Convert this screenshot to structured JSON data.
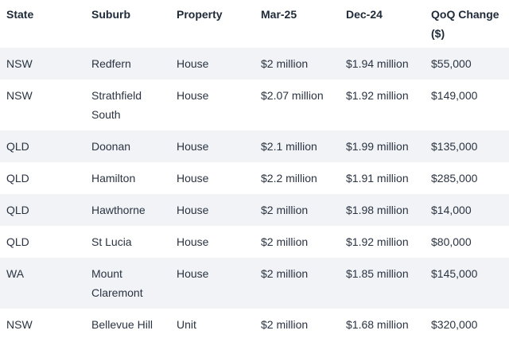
{
  "table": {
    "headers": [
      "State",
      "Suburb",
      "Property",
      "Mar-25",
      "Dec-24",
      "QoQ Change ($)"
    ],
    "rows": [
      [
        "NSW",
        "Redfern",
        "House",
        "$2 million",
        "$1.94 million",
        "$55,000"
      ],
      [
        "NSW",
        "Strathfield South",
        "House",
        "$2.07 million",
        "$1.92 million",
        "$149,000"
      ],
      [
        "QLD",
        "Doonan",
        "House",
        "$2.1 million",
        "$1.99 million",
        "$135,000"
      ],
      [
        "QLD",
        "Hamilton",
        "House",
        "$2.2 million",
        "$1.91 million",
        "$285,000"
      ],
      [
        "QLD",
        "Hawthorne",
        "House",
        "$2 million",
        "$1.98 million",
        "$14,000"
      ],
      [
        "QLD",
        "St Lucia",
        "House",
        "$2 million",
        "$1.92 million",
        "$80,000"
      ],
      [
        "WA",
        "Mount Claremont",
        "House",
        "$2 million",
        "$1.85 million",
        "$145,000"
      ],
      [
        "NSW",
        "Bellevue Hill",
        "Unit",
        "$2 million",
        "$1.68 million",
        "$320,000"
      ]
    ]
  }
}
